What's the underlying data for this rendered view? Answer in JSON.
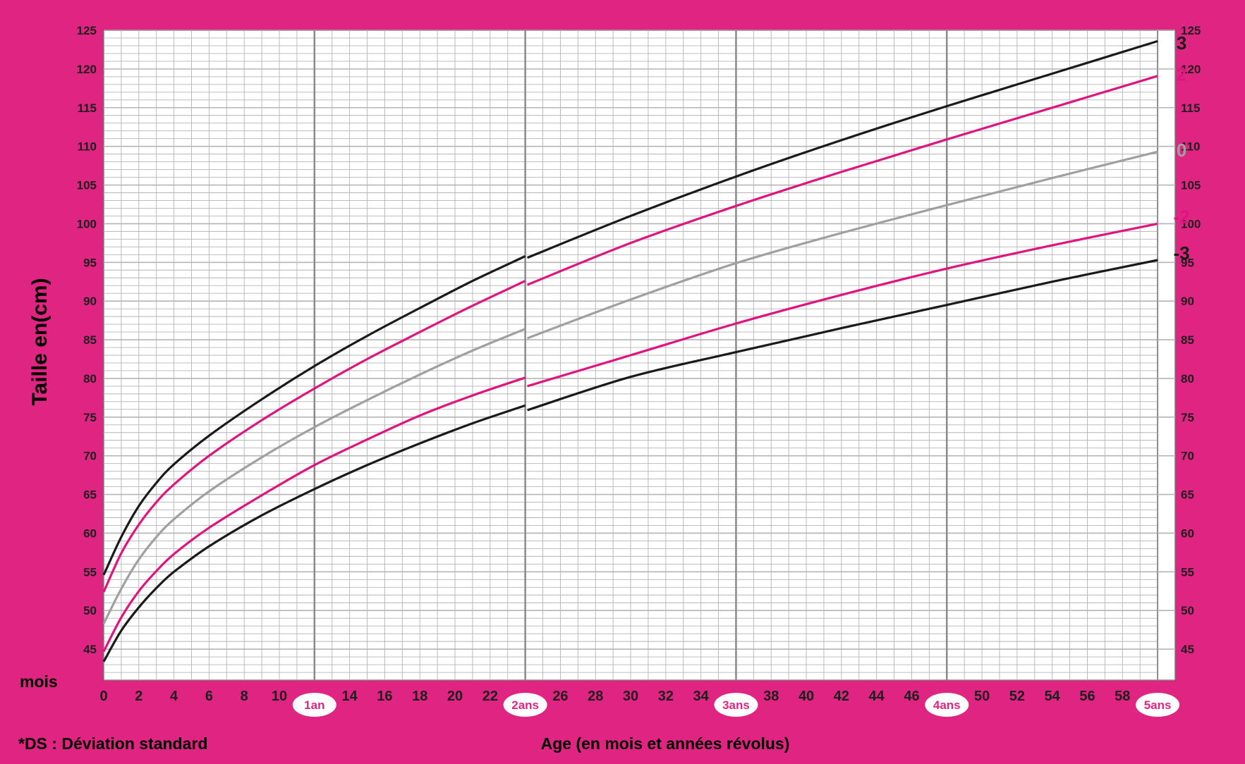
{
  "colors": {
    "frame": "#e02482",
    "plot_bg": "#ffffff",
    "grid_minor": "#b4b4b4",
    "grid_major": "#8a8a8a",
    "curve_black": "#1a1a1a",
    "curve_pink": "#e0147e",
    "curve_gray": "#a0a0a0",
    "text_dark": "#1e1e1e"
  },
  "chart_data": {
    "type": "line",
    "title": "",
    "ylabel": "Taille en(cm)",
    "xlabel": "Age (en mois et années révolus)",
    "x_unit_label": "mois",
    "footnote": "*DS : Déviation standard",
    "xlim": [
      0,
      61
    ],
    "ylim": [
      41,
      125
    ],
    "x_grid_step": 1,
    "y_grid_step": 1,
    "x_major_ticks": [
      12,
      24,
      36,
      48
    ],
    "y_major_step": 5,
    "y_ticks": [
      45,
      50,
      55,
      60,
      65,
      70,
      75,
      80,
      85,
      90,
      95,
      100,
      105,
      110,
      115,
      120,
      125
    ],
    "x_tick_labels": [
      {
        "x": 0,
        "label": "0"
      },
      {
        "x": 2,
        "label": "2"
      },
      {
        "x": 4,
        "label": "4"
      },
      {
        "x": 6,
        "label": "6"
      },
      {
        "x": 8,
        "label": "8"
      },
      {
        "x": 10,
        "label": "10"
      },
      {
        "x": 14,
        "label": "14"
      },
      {
        "x": 16,
        "label": "16"
      },
      {
        "x": 18,
        "label": "18"
      },
      {
        "x": 20,
        "label": "20"
      },
      {
        "x": 22,
        "label": "22"
      },
      {
        "x": 26,
        "label": "26"
      },
      {
        "x": 28,
        "label": "28"
      },
      {
        "x": 30,
        "label": "30"
      },
      {
        "x": 32,
        "label": "32"
      },
      {
        "x": 34,
        "label": "34"
      },
      {
        "x": 38,
        "label": "38"
      },
      {
        "x": 40,
        "label": "40"
      },
      {
        "x": 42,
        "label": "42"
      },
      {
        "x": 44,
        "label": "44"
      },
      {
        "x": 46,
        "label": "46"
      },
      {
        "x": 50,
        "label": "50"
      },
      {
        "x": 52,
        "label": "52"
      },
      {
        "x": 54,
        "label": "54"
      },
      {
        "x": 56,
        "label": "56"
      },
      {
        "x": 58,
        "label": "58"
      }
    ],
    "year_markers": [
      {
        "x": 12,
        "label": "1an"
      },
      {
        "x": 24,
        "label": "2ans"
      },
      {
        "x": 36,
        "label": "3ans"
      },
      {
        "x": 48,
        "label": "4ans"
      },
      {
        "x": 60,
        "label": "5ans"
      }
    ],
    "series": [
      {
        "name": "3",
        "color": "#1a1a1a",
        "segments": [
          [
            [
              0,
              54.6
            ],
            [
              1,
              59.5
            ],
            [
              2,
              63.5
            ],
            [
              3,
              66.5
            ],
            [
              4,
              68.9
            ],
            [
              6,
              72.6
            ],
            [
              9,
              77.3
            ],
            [
              12,
              81.6
            ],
            [
              15,
              85.5
            ],
            [
              18,
              89.1
            ],
            [
              21,
              92.6
            ],
            [
              24,
              95.8
            ]
          ],
          [
            [
              24,
              95.6
            ],
            [
              30,
              101.0
            ],
            [
              36,
              106.1
            ],
            [
              42,
              110.8
            ],
            [
              48,
              115.2
            ],
            [
              54,
              119.4
            ],
            [
              60,
              123.6
            ]
          ]
        ]
      },
      {
        "name": "2",
        "color": "#e0147e",
        "segments": [
          [
            [
              0,
              52.4
            ],
            [
              1,
              57.4
            ],
            [
              2,
              61.1
            ],
            [
              3,
              64.0
            ],
            [
              4,
              66.3
            ],
            [
              6,
              70.0
            ],
            [
              9,
              74.6
            ],
            [
              12,
              78.7
            ],
            [
              15,
              82.5
            ],
            [
              18,
              86.0
            ],
            [
              21,
              89.4
            ],
            [
              24,
              92.6
            ]
          ],
          [
            [
              24,
              92.1
            ],
            [
              30,
              97.5
            ],
            [
              36,
              102.3
            ],
            [
              42,
              106.7
            ],
            [
              48,
              110.9
            ],
            [
              54,
              115.0
            ],
            [
              60,
              119.1
            ]
          ]
        ]
      },
      {
        "name": "0",
        "color": "#a0a0a0",
        "segments": [
          [
            [
              0,
              48.3
            ],
            [
              1,
              52.8
            ],
            [
              2,
              56.6
            ],
            [
              3,
              59.5
            ],
            [
              4,
              61.8
            ],
            [
              6,
              65.4
            ],
            [
              9,
              69.8
            ],
            [
              12,
              73.7
            ],
            [
              15,
              77.2
            ],
            [
              18,
              80.5
            ],
            [
              21,
              83.6
            ],
            [
              24,
              86.4
            ]
          ],
          [
            [
              24,
              85.2
            ],
            [
              30,
              90.2
            ],
            [
              36,
              94.9
            ],
            [
              42,
              98.8
            ],
            [
              48,
              102.4
            ],
            [
              54,
              105.9
            ],
            [
              60,
              109.3
            ]
          ]
        ]
      },
      {
        "name": "-2",
        "color": "#e0147e",
        "segments": [
          [
            [
              0,
              44.7
            ],
            [
              1,
              49.1
            ],
            [
              2,
              52.5
            ],
            [
              3,
              55.1
            ],
            [
              4,
              57.3
            ],
            [
              6,
              60.7
            ],
            [
              9,
              64.9
            ],
            [
              12,
              68.8
            ],
            [
              15,
              72.1
            ],
            [
              18,
              75.2
            ],
            [
              21,
              77.8
            ],
            [
              24,
              80.1
            ]
          ],
          [
            [
              24,
              79.0
            ],
            [
              30,
              83.0
            ],
            [
              36,
              87.1
            ],
            [
              42,
              90.8
            ],
            [
              48,
              94.2
            ],
            [
              54,
              97.2
            ],
            [
              60,
              100.0
            ]
          ]
        ]
      },
      {
        "name": "-3",
        "color": "#1a1a1a",
        "segments": [
          [
            [
              0,
              43.4
            ],
            [
              1,
              47.4
            ],
            [
              2,
              50.4
            ],
            [
              3,
              52.9
            ],
            [
              4,
              55.0
            ],
            [
              6,
              58.3
            ],
            [
              9,
              62.3
            ],
            [
              12,
              65.7
            ],
            [
              15,
              68.8
            ],
            [
              18,
              71.6
            ],
            [
              21,
              74.2
            ],
            [
              24,
              76.5
            ]
          ],
          [
            [
              24,
              75.9
            ],
            [
              30,
              80.2
            ],
            [
              36,
              83.4
            ],
            [
              42,
              86.5
            ],
            [
              48,
              89.5
            ],
            [
              54,
              92.5
            ],
            [
              60,
              95.3
            ]
          ]
        ]
      }
    ]
  }
}
